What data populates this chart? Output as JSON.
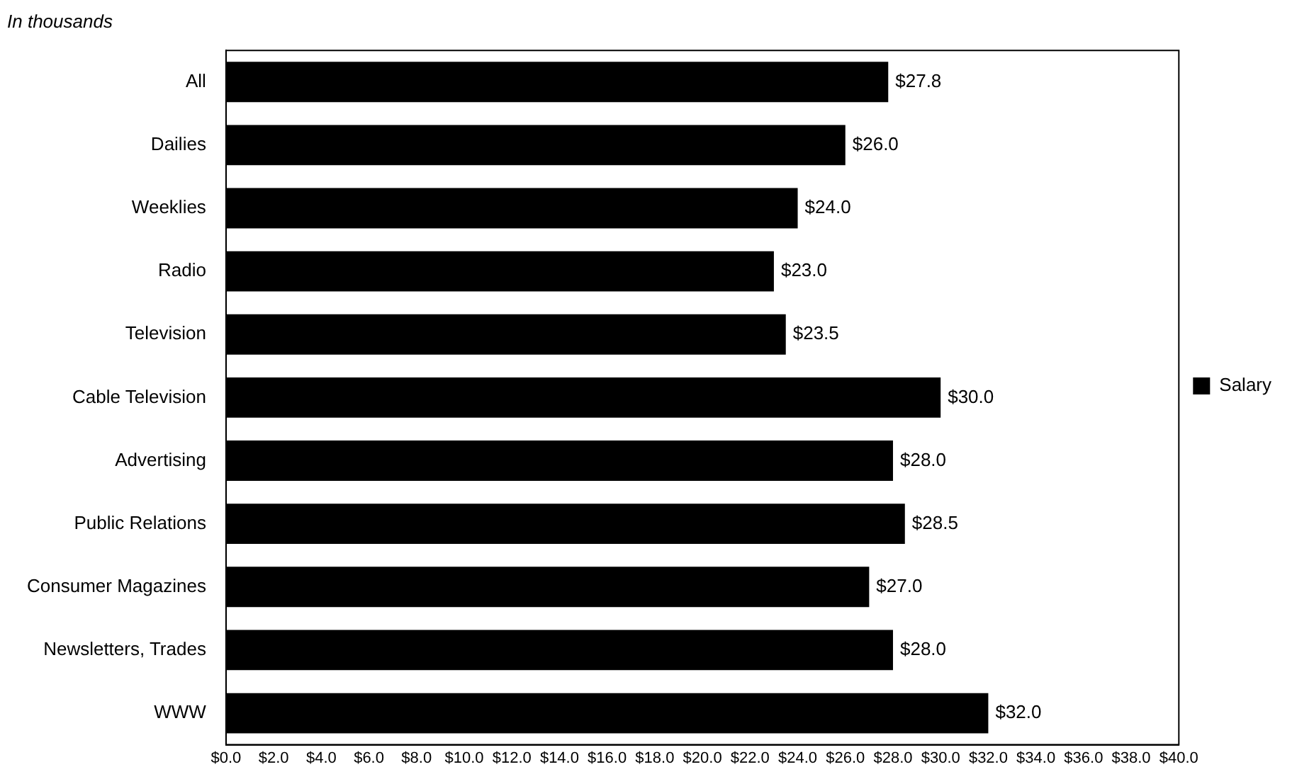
{
  "chart_data": {
    "type": "bar",
    "orientation": "horizontal",
    "title": "In thousands",
    "categories": [
      "All",
      "Dailies",
      "Weeklies",
      "Radio",
      "Television",
      "Cable Television",
      "Advertising",
      "Public Relations",
      "Consumer Magazines",
      "Newsletters, Trades",
      "WWW"
    ],
    "series": [
      {
        "name": "Salary",
        "color": "#000000",
        "values": [
          27.8,
          26.0,
          24.0,
          23.0,
          23.5,
          30.0,
          28.0,
          28.5,
          27.0,
          28.0,
          32.0
        ],
        "value_labels": [
          "$27.8",
          "$26.0",
          "$24.0",
          "$23.0",
          "$23.5",
          "$30.0",
          "$28.0",
          "$28.5",
          "$27.0",
          "$28.0",
          "$32.0"
        ]
      }
    ],
    "xlim": [
      0,
      40
    ],
    "xticks": [
      {
        "value": 0,
        "label": "$0.0"
      },
      {
        "value": 2,
        "label": "$2.0"
      },
      {
        "value": 4,
        "label": "$4.0"
      },
      {
        "value": 6,
        "label": "$6.0"
      },
      {
        "value": 8,
        "label": "$8.0"
      },
      {
        "value": 10,
        "label": "$10.0"
      },
      {
        "value": 12,
        "label": "$12.0"
      },
      {
        "value": 14,
        "label": "$14.0"
      },
      {
        "value": 16,
        "label": "$16.0"
      },
      {
        "value": 18,
        "label": "$18.0"
      },
      {
        "value": 20,
        "label": "$20.0"
      },
      {
        "value": 22,
        "label": "$22.0"
      },
      {
        "value": 24,
        "label": "$24.0"
      },
      {
        "value": 26,
        "label": "$26.0"
      },
      {
        "value": 28,
        "label": "$28.0"
      },
      {
        "value": 30,
        "label": "$30.0"
      },
      {
        "value": 32,
        "label": "$32.0"
      },
      {
        "value": 34,
        "label": "$34.0"
      },
      {
        "value": 36,
        "label": "$36.0"
      },
      {
        "value": 38,
        "label": "$38.0"
      },
      {
        "value": 40,
        "label": "$40.0"
      }
    ],
    "grid": false,
    "legend": "right"
  }
}
